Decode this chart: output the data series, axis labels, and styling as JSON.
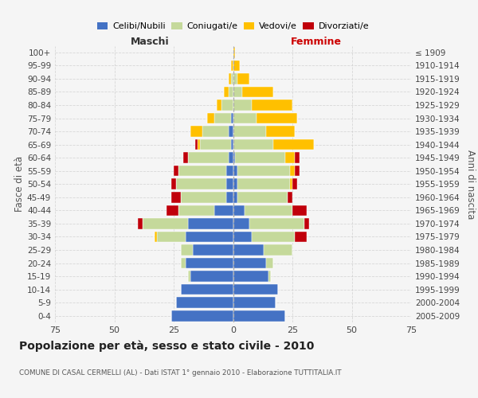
{
  "age_groups": [
    "0-4",
    "5-9",
    "10-14",
    "15-19",
    "20-24",
    "25-29",
    "30-34",
    "35-39",
    "40-44",
    "45-49",
    "50-54",
    "55-59",
    "60-64",
    "65-69",
    "70-74",
    "75-79",
    "80-84",
    "85-89",
    "90-94",
    "95-99",
    "100+"
  ],
  "birth_years": [
    "2005-2009",
    "2000-2004",
    "1995-1999",
    "1990-1994",
    "1985-1989",
    "1980-1984",
    "1975-1979",
    "1970-1974",
    "1965-1969",
    "1960-1964",
    "1955-1959",
    "1950-1954",
    "1945-1949",
    "1940-1944",
    "1935-1939",
    "1930-1934",
    "1925-1929",
    "1920-1924",
    "1915-1919",
    "1910-1914",
    "≤ 1909"
  ],
  "maschi": {
    "celibi": [
      26,
      24,
      22,
      18,
      20,
      17,
      20,
      19,
      8,
      3,
      3,
      3,
      2,
      1,
      2,
      1,
      0,
      0,
      0,
      0,
      0
    ],
    "coniugati": [
      0,
      0,
      0,
      1,
      2,
      5,
      12,
      19,
      15,
      19,
      21,
      20,
      17,
      13,
      11,
      7,
      5,
      2,
      1,
      0,
      0
    ],
    "vedovi": [
      0,
      0,
      0,
      0,
      0,
      0,
      1,
      0,
      0,
      0,
      0,
      0,
      0,
      1,
      5,
      3,
      2,
      2,
      1,
      1,
      0
    ],
    "divorziati": [
      0,
      0,
      0,
      0,
      0,
      0,
      0,
      2,
      5,
      4,
      2,
      2,
      2,
      1,
      0,
      0,
      0,
      0,
      0,
      0,
      0
    ]
  },
  "femmine": {
    "nubili": [
      22,
      18,
      19,
      15,
      14,
      13,
      8,
      7,
      5,
      2,
      2,
      2,
      1,
      0,
      0,
      0,
      0,
      0,
      0,
      0,
      0
    ],
    "coniugate": [
      0,
      0,
      0,
      1,
      3,
      12,
      18,
      23,
      20,
      21,
      22,
      22,
      21,
      17,
      14,
      10,
      8,
      4,
      2,
      0,
      0
    ],
    "vedove": [
      0,
      0,
      0,
      0,
      0,
      0,
      0,
      0,
      0,
      0,
      1,
      2,
      4,
      17,
      12,
      17,
      17,
      13,
      5,
      3,
      1
    ],
    "divorziate": [
      0,
      0,
      0,
      0,
      0,
      0,
      5,
      2,
      6,
      2,
      2,
      2,
      2,
      0,
      0,
      0,
      0,
      0,
      0,
      0,
      0
    ]
  },
  "colors": {
    "celibi": "#4472c4",
    "coniugati": "#c5d99b",
    "vedovi": "#ffc000",
    "divorziati": "#c0000b"
  },
  "xlim": 75,
  "title": "Popolazione per età, sesso e stato civile - 2010",
  "subtitle": "COMUNE DI CASAL CERMELLI (AL) - Dati ISTAT 1° gennaio 2010 - Elaborazione TUTTITALIA.IT",
  "ylabel_left": "Fasce di età",
  "ylabel_right": "Anni di nascita",
  "xlabel_left": "Maschi",
  "xlabel_right": "Femmine",
  "bg_color": "#f5f5f5",
  "grid_color": "#cccccc"
}
